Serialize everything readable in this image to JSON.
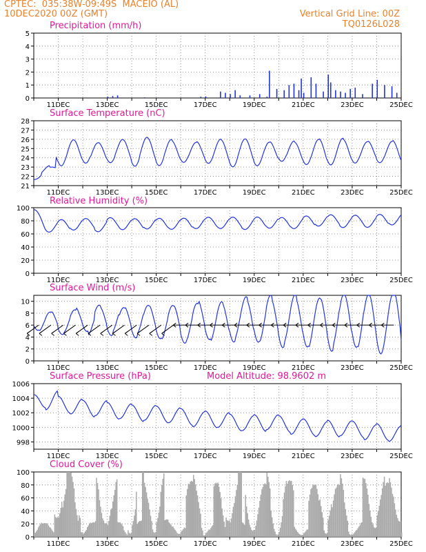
{
  "header": {
    "line1": "CPTEC:  035:38W-09:49S  MACEIO (AL)",
    "line2": "10DEC2020 00Z (GMT)",
    "grid_note": "Vertical Grid Line: 00Z",
    "code": "TQ0126L028"
  },
  "colors": {
    "header": "#e8822e",
    "title": "#e0189a",
    "line": "#2233dd",
    "bar": "#2233dd",
    "cloud": "#aaaaaa"
  },
  "x_ticks": [
    "11DEC",
    "13DEC",
    "15DEC",
    "17DEC",
    "19DEC",
    "21DEC",
    "23DEC",
    "25DEC"
  ],
  "chart_data": [
    {
      "type": "bar",
      "title": "Precipitation (mm/h)",
      "ylim": [
        0,
        5
      ],
      "yticks": [
        "0",
        "1",
        "2",
        "3",
        "4",
        "5"
      ],
      "x_days": [
        0,
        15
      ],
      "series": [
        {
          "values": [
            [
              3.0,
              0.1
            ],
            [
              3.2,
              0.15
            ],
            [
              3.4,
              0.2
            ],
            [
              4.5,
              0.05
            ],
            [
              6.8,
              0.1
            ],
            [
              7.0,
              0.12
            ],
            [
              7.6,
              0.5
            ],
            [
              7.8,
              0.4
            ],
            [
              8.0,
              0.3
            ],
            [
              8.2,
              0.6
            ],
            [
              8.4,
              0.2
            ],
            [
              8.8,
              0.2
            ],
            [
              9.2,
              0.3
            ],
            [
              9.5,
              0.1
            ],
            [
              9.9,
              0.7
            ],
            [
              10.2,
              0.6
            ],
            [
              10.4,
              1.0
            ],
            [
              10.6,
              1.1
            ],
            [
              10.8,
              0.6
            ],
            [
              11.0,
              0.4
            ],
            [
              11.3,
              1.6
            ],
            [
              11.5,
              1.1
            ],
            [
              11.8,
              0.5
            ],
            [
              12.3,
              0.6
            ],
            [
              12.5,
              0.5
            ],
            [
              12.7,
              0.4
            ],
            [
              12.9,
              0.7
            ],
            [
              13.1,
              0.8
            ],
            [
              13.4,
              0.3
            ],
            [
              13.8,
              1.1
            ],
            [
              14.0,
              1.4
            ],
            [
              14.3,
              1.0
            ],
            [
              14.6,
              0.9
            ],
            [
              14.8,
              0.4
            ],
            [
              9.6,
              2.1
            ],
            [
              10.9,
              1.5
            ],
            [
              12.0,
              1.8
            ],
            [
              12.1,
              1.2
            ]
          ]
        }
      ]
    },
    {
      "type": "line",
      "title": "Surface Temperature (nC)",
      "ylim": [
        21,
        28
      ],
      "yticks": [
        "21",
        "22",
        "23",
        "24",
        "25",
        "26",
        "27",
        "28"
      ],
      "series": [
        {
          "name": "",
          "values": []
        }
      ]
    },
    {
      "type": "line",
      "title": "Relative Humidity (%)",
      "ylim": [
        0,
        100
      ],
      "yticks": [
        "0",
        "20",
        "40",
        "60",
        "80",
        "100"
      ],
      "series": [
        {
          "name": "",
          "values": []
        }
      ]
    },
    {
      "type": "line",
      "title": "Surface Wind (m/s)",
      "ylim": [
        0,
        11
      ],
      "yticks": [
        "0",
        "2",
        "4",
        "6",
        "8",
        "10"
      ],
      "series": [
        {
          "name": "",
          "values": []
        }
      ]
    },
    {
      "type": "line",
      "title": "Surface Pressure (hPa)",
      "annotation": "Model Altitude: 98.9602 m",
      "ylim": [
        997,
        1006
      ],
      "yticks": [
        "998",
        "1000",
        "1002",
        "1004",
        "1006"
      ],
      "series": [
        {
          "name": "",
          "values": []
        }
      ]
    },
    {
      "type": "area",
      "title": "Cloud Cover (%)",
      "ylim": [
        0,
        100
      ],
      "yticks": [
        "0",
        "20",
        "40",
        "60",
        "80",
        "100"
      ],
      "series": [
        {
          "name": "",
          "values": []
        }
      ]
    }
  ]
}
